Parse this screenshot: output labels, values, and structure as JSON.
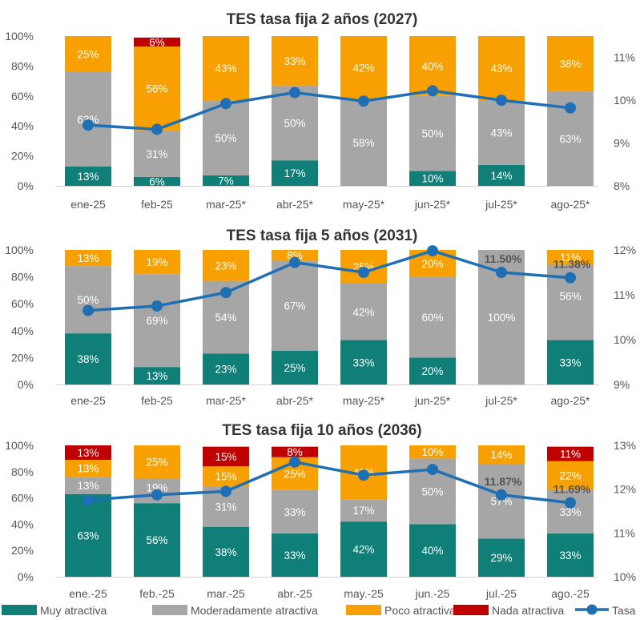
{
  "colors": {
    "muy": "#0f7f78",
    "moderada": "#a6a6a6",
    "poco": "#f7a000",
    "nada": "#c00000",
    "tasa": "#1f6fb4"
  },
  "legend": {
    "muy": "Muy atractiva",
    "moderada": "Moderadamente atractiva",
    "poco": "Poco atractiva",
    "nada": "Nada atractiva",
    "tasa": "Tasa"
  },
  "chart_data": [
    {
      "type": "bar",
      "stacked": true,
      "title": "TES tasa fija 2 años (2027)",
      "categories": [
        "ene-25",
        "feb-25",
        "mar-25*",
        "abr-25*",
        "may-25*",
        "jun-25*",
        "jul-25*",
        "ago-25*"
      ],
      "y_ticks": [
        "0%",
        "20%",
        "40%",
        "60%",
        "80%",
        "100%"
      ],
      "y2_ticks": [
        "8%",
        "9%",
        "10%",
        "11%"
      ],
      "y2lim": [
        8,
        11.5
      ],
      "series": [
        {
          "name": "Muy atractiva",
          "key": "muy",
          "values": [
            13,
            6,
            7,
            17,
            0,
            10,
            14,
            0
          ],
          "labels": [
            "13%",
            "6%",
            "7%",
            "17%",
            "",
            "10%",
            "14%",
            ""
          ]
        },
        {
          "name": "Moderadamente atractiva",
          "key": "moderada",
          "values": [
            63,
            31,
            50,
            50,
            58,
            50,
            43,
            63
          ],
          "labels": [
            "63%",
            "31%",
            "50%",
            "50%",
            "58%",
            "50%",
            "43%",
            "63%"
          ]
        },
        {
          "name": "Poco atractiva",
          "key": "poco",
          "values": [
            25,
            56,
            43,
            33,
            42,
            40,
            43,
            38
          ],
          "labels": [
            "25%",
            "56%",
            "43%",
            "33%",
            "42%",
            "40%",
            "43%",
            "38%"
          ]
        },
        {
          "name": "Nada atractiva",
          "key": "nada",
          "values": [
            0,
            6,
            0,
            0,
            0,
            0,
            0,
            0
          ],
          "labels": [
            "",
            "6%",
            "",
            "",
            "",
            "",
            "",
            ""
          ]
        }
      ],
      "line": {
        "name": "Tasa",
        "values": [
          9.42,
          9.32,
          9.92,
          10.18,
          9.98,
          10.22,
          10.0,
          9.82
        ],
        "labels": [
          "",
          "",
          "",
          "",
          "",
          "",
          "",
          ""
        ]
      }
    },
    {
      "type": "bar",
      "stacked": true,
      "title": "TES tasa fija 5 años (2031)",
      "categories": [
        "ene-25",
        "feb-25",
        "mar-25*",
        "abr-25*",
        "may-25*",
        "jun-25*",
        "jul-25*",
        "ago-25*"
      ],
      "y_ticks": [
        "0%",
        "20%",
        "40%",
        "60%",
        "80%",
        "100%"
      ],
      "y2_ticks": [
        "9%",
        "10%",
        "11%",
        "12%"
      ],
      "y2lim": [
        9,
        12
      ],
      "series": [
        {
          "name": "Muy atractiva",
          "key": "muy",
          "values": [
            38,
            13,
            23,
            25,
            33,
            20,
            0,
            33
          ],
          "labels": [
            "38%",
            "13%",
            "23%",
            "25%",
            "33%",
            "20%",
            "",
            "33%"
          ]
        },
        {
          "name": "Moderadamente atractiva",
          "key": "moderada",
          "values": [
            50,
            69,
            54,
            67,
            42,
            60,
            100,
            56
          ],
          "labels": [
            "50%",
            "69%",
            "54%",
            "67%",
            "42%",
            "60%",
            "100%",
            "56%"
          ]
        },
        {
          "name": "Poco atractiva",
          "key": "poco",
          "values": [
            13,
            19,
            23,
            8,
            25,
            20,
            0,
            11
          ],
          "labels": [
            "13%",
            "19%",
            "23%",
            "8%",
            "25%",
            "20%",
            "",
            "11%"
          ]
        },
        {
          "name": "Nada atractiva",
          "key": "nada",
          "values": [
            0,
            0,
            0,
            0,
            0,
            0,
            0,
            0
          ],
          "labels": [
            "",
            "",
            "",
            "",
            "",
            "",
            "",
            ""
          ]
        }
      ],
      "line": {
        "name": "Tasa",
        "values": [
          10.65,
          10.75,
          11.05,
          11.72,
          11.5,
          11.98,
          11.5,
          11.38
        ],
        "labels": [
          "",
          "",
          "",
          "",
          "",
          "",
          "11.50%",
          "11.38%"
        ]
      }
    },
    {
      "type": "bar",
      "stacked": true,
      "title": "TES tasa fija 10 años (2036)",
      "categories": [
        "ene.-25",
        "feb.-25",
        "mar.-25",
        "abr.-25",
        "may.-25",
        "jun.-25",
        "jul.-25",
        "ago.-25"
      ],
      "y_ticks": [
        "0%",
        "20%",
        "40%",
        "60%",
        "80%",
        "100%"
      ],
      "y2_ticks": [
        "10%",
        "11%",
        "12%",
        "13%"
      ],
      "y2lim": [
        10,
        13
      ],
      "series": [
        {
          "name": "Muy atractiva",
          "key": "muy",
          "values": [
            63,
            56,
            38,
            33,
            42,
            40,
            29,
            33
          ],
          "labels": [
            "63%",
            "56%",
            "38%",
            "33%",
            "42%",
            "40%",
            "29%",
            "33%"
          ]
        },
        {
          "name": "Moderadamente atractiva",
          "key": "moderada",
          "values": [
            13,
            19,
            31,
            33,
            17,
            50,
            57,
            33
          ],
          "labels": [
            "13%",
            "19%",
            "31%",
            "33%",
            "17%",
            "50%",
            "57%",
            "33%"
          ]
        },
        {
          "name": "Poco atractiva",
          "key": "poco",
          "values": [
            13,
            25,
            15,
            25,
            42,
            10,
            14,
            22
          ],
          "labels": [
            "13%",
            "25%",
            "15%",
            "25%",
            "42%",
            "10%",
            "14%",
            "22%"
          ]
        },
        {
          "name": "Nada atractiva",
          "key": "nada",
          "values": [
            13,
            0,
            15,
            8,
            0,
            0,
            0,
            11
          ],
          "labels": [
            "13%",
            "",
            "15%",
            "8%",
            "",
            "",
            "",
            "11%"
          ]
        }
      ],
      "line": {
        "name": "Tasa",
        "values": [
          11.75,
          11.87,
          11.95,
          12.62,
          12.32,
          12.45,
          11.87,
          11.69
        ],
        "labels": [
          "",
          "",
          "",
          "",
          "",
          "",
          "11.87%",
          "11.69%"
        ]
      }
    }
  ]
}
